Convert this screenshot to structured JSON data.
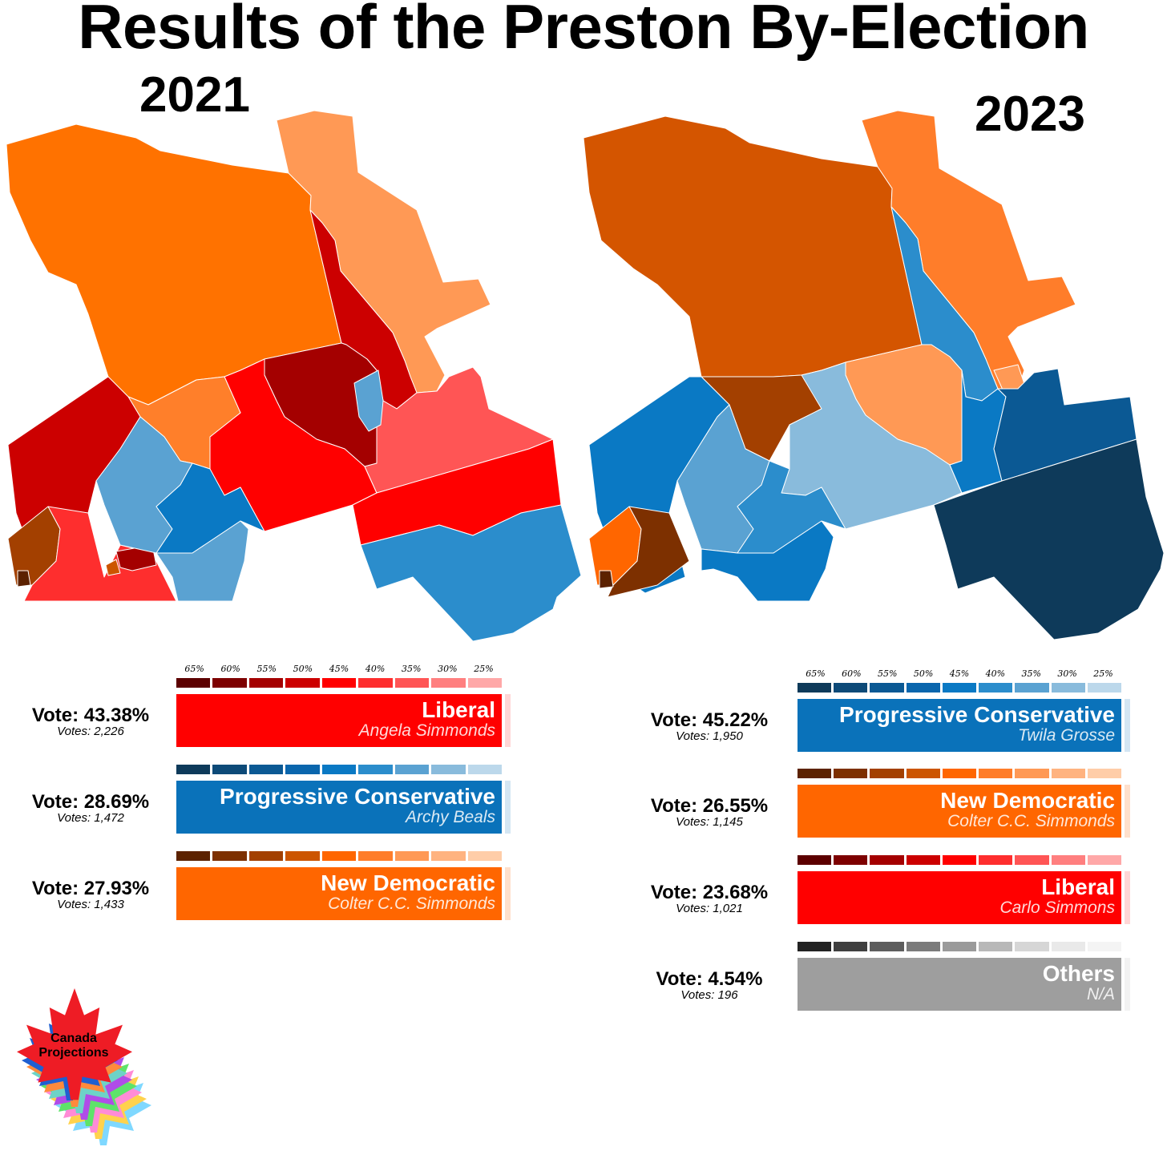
{
  "title": "Results of the Preston By-Election",
  "maps": {
    "left_year": "2021",
    "right_year": "2023"
  },
  "scale_labels": [
    "65%",
    "60%",
    "55%",
    "50%",
    "45%",
    "40%",
    "35%",
    "30%",
    "25%"
  ],
  "palettes": {
    "liberal": [
      "#5c0000",
      "#7d0000",
      "#a40000",
      "#cc0000",
      "#ff0000",
      "#fe2e2e",
      "#ff5555",
      "#ff7f7f",
      "#ffa8a8"
    ],
    "pc": [
      "#0e3a5a",
      "#0d4a78",
      "#0b5994",
      "#0a66ad",
      "#0a79c4",
      "#2b8dcc",
      "#5aa2d2",
      "#89bbdc",
      "#bcd8eb"
    ],
    "ndp": [
      "#5c2200",
      "#7d3000",
      "#a34000",
      "#cc5500",
      "#ff6600",
      "#ff7d2a",
      "#ff9955",
      "#ffb380",
      "#ffcda8"
    ],
    "others": [
      "#222222",
      "#3f3f3f",
      "#5d5d5d",
      "#7b7b7b",
      "#9a9a9a",
      "#b8b8b8",
      "#d6d6d6",
      "#e9e9e9",
      "#f4f4f4"
    ]
  },
  "results_2021": [
    {
      "party": "Liberal",
      "candidate": "Angela Simmonds",
      "vote": "Vote: 43.38%",
      "votes": "Votes: 2,226",
      "palette": "liberal",
      "bar_color": "#ff0000",
      "strip_color": "#ffd6d6"
    },
    {
      "party": "Progressive Conservative",
      "candidate": "Archy Beals",
      "vote": "Vote: 28.69%",
      "votes": "Votes: 1,472",
      "palette": "pc",
      "bar_color": "#0a72ba",
      "strip_color": "#d4e6f3"
    },
    {
      "party": "New Democratic",
      "candidate": "Colter C.C. Simmonds",
      "vote": "Vote: 27.93%",
      "votes": "Votes: 1,433",
      "palette": "ndp",
      "bar_color": "#ff6600",
      "strip_color": "#ffe0cc"
    }
  ],
  "results_2023": [
    {
      "party": "Progressive Conservative",
      "candidate": "Twila Grosse",
      "vote": "Vote: 45.22%",
      "votes": "Votes: 1,950",
      "palette": "pc",
      "bar_color": "#0a72ba",
      "strip_color": "#d4e6f3"
    },
    {
      "party": "New Democratic",
      "candidate": "Colter C.C. Simmonds",
      "vote": "Vote: 26.55%",
      "votes": "Votes: 1,145",
      "palette": "ndp",
      "bar_color": "#ff6600",
      "strip_color": "#ffe0cc"
    },
    {
      "party": "Liberal",
      "candidate": "Carlo Simmons",
      "vote": "Vote: 23.68%",
      "votes": "Votes: 1,021",
      "palette": "liberal",
      "bar_color": "#ff0000",
      "strip_color": "#ffd6d6"
    },
    {
      "party": "Others",
      "candidate": "N/A",
      "vote": "Vote: 4.54%",
      "votes": "Votes: 196",
      "palette": "others",
      "bar_color": "#9e9e9e",
      "strip_color": "#f2f2f2"
    }
  ],
  "logo": {
    "line1": "Canada",
    "line2": "Projections",
    "leaf_color": "#ee1c25"
  }
}
